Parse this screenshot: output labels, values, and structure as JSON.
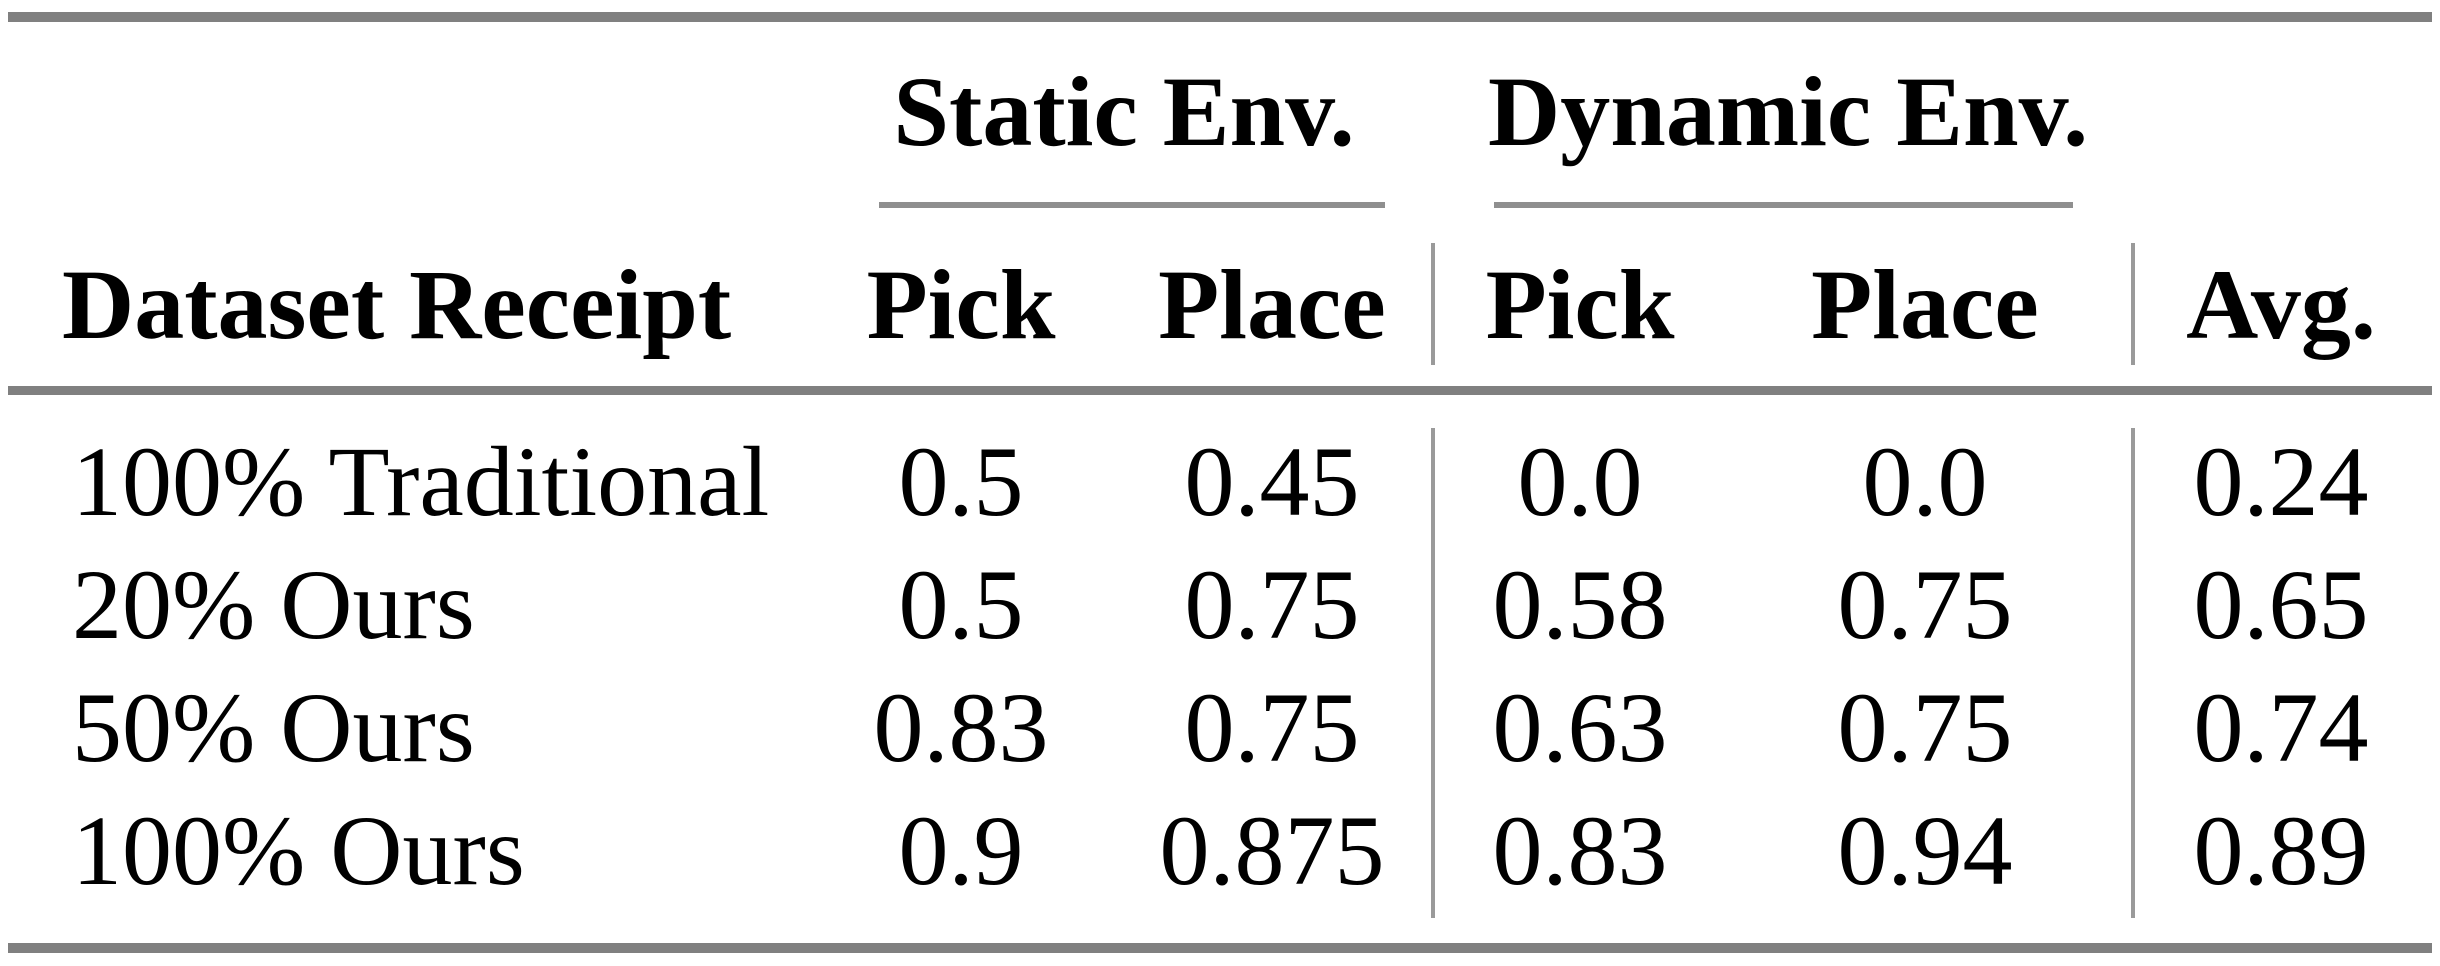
{
  "table": {
    "group_headers": {
      "static": "Static Env.",
      "dynamic": "Dynamic Env."
    },
    "columns": {
      "row_label": "Dataset Receipt",
      "static_pick": "Pick",
      "static_place": "Place",
      "dynamic_pick": "Pick",
      "dynamic_place": "Place",
      "avg": "Avg."
    },
    "rows": [
      {
        "label": "100% Traditional",
        "values": [
          "0.5",
          "0.45",
          "0.0",
          "0.0",
          "0.24"
        ]
      },
      {
        "label": "20% Ours",
        "values": [
          "0.5",
          "0.75",
          "0.58",
          "0.75",
          "0.65"
        ]
      },
      {
        "label": "50% Ours",
        "values": [
          "0.83",
          "0.75",
          "0.63",
          "0.75",
          "0.74"
        ]
      },
      {
        "label": "100% Ours",
        "values": [
          "0.9",
          "0.875",
          "0.83",
          "0.94",
          "0.89"
        ]
      }
    ]
  },
  "colors": {
    "background": "#ffffff",
    "text": "#000000",
    "rule_thick": "#808080",
    "rule_thin": "#8f8f8f",
    "vertical_separator": "#9a9a9a"
  }
}
